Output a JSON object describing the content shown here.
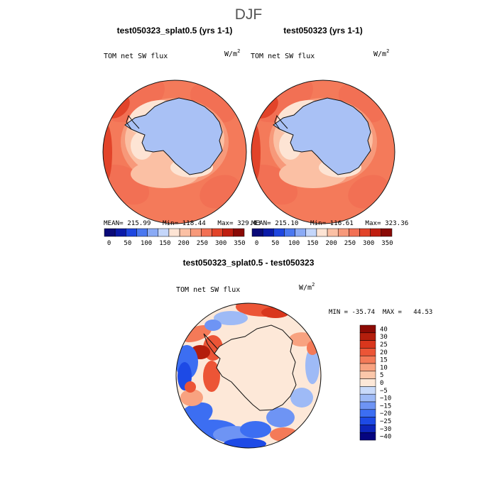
{
  "page": {
    "season": "DJF"
  },
  "colors": {
    "levels_abs": [
      "#0a0a78",
      "#0a1aa8",
      "#1e46e0",
      "#4a78f0",
      "#8aaaf5",
      "#c4d6fa",
      "#fde4d4",
      "#fbc0a4",
      "#f7997a",
      "#f27054",
      "#e2442a",
      "#bf1e10",
      "#8a0a06"
    ],
    "levels_diff": [
      "#050580",
      "#0d25bb",
      "#1d4ae6",
      "#3c6ef2",
      "#6e94f4",
      "#9ebaf6",
      "#c9dafa",
      "#fde8d8",
      "#fbc7aa",
      "#f8a280",
      "#f47a58",
      "#ec5536",
      "#d9361c",
      "#b41e0c",
      "#8c0a04"
    ],
    "coast": "#111111",
    "antarctica_abs": "#a9c1f5",
    "antarctica_diff": "#fde8d8"
  },
  "chart_data": [
    {
      "type": "heatmap",
      "projection": "polar-stereographic-south",
      "title": "test050323_splat0.5 (yrs 1-1)",
      "variable": "TOM net SW flux",
      "units": "W/m",
      "units_exp": "2",
      "stats_text": "MEAN= 215.99   Min= 118.44   Max= 329.43",
      "stats": {
        "mean": 215.99,
        "min": 118.44,
        "max": 329.43
      },
      "colorbar": {
        "tick_labels": [
          "0",
          "50",
          "100",
          "150",
          "200",
          "250",
          "300",
          "350"
        ],
        "levels": [
          0,
          25,
          50,
          75,
          100,
          125,
          150,
          175,
          200,
          225,
          250,
          275,
          300,
          325,
          350
        ]
      }
    },
    {
      "type": "heatmap",
      "projection": "polar-stereographic-south",
      "title": "test050323 (yrs 1-1)",
      "variable": "TOM net SW flux",
      "units": "W/m",
      "units_exp": "2",
      "stats_text": "MEAN= 215.10   Min= 116.61   Max= 323.36",
      "stats": {
        "mean": 215.1,
        "min": 116.61,
        "max": 323.36
      },
      "colorbar": {
        "tick_labels": [
          "0",
          "50",
          "100",
          "150",
          "200",
          "250",
          "300",
          "350"
        ],
        "levels": [
          0,
          25,
          50,
          75,
          100,
          125,
          150,
          175,
          200,
          225,
          250,
          275,
          300,
          325,
          350
        ]
      }
    },
    {
      "type": "heatmap",
      "projection": "polar-stereographic-south",
      "title": "test050323_splat0.5 - test050323",
      "variable": "TOM net SW flux",
      "units": "W/m",
      "units_exp": "2",
      "stats_text": "MIN = -35.74  MAX =   44.53",
      "stats": {
        "min": -35.74,
        "max": 44.53
      },
      "colorbar": {
        "orientation": "vertical",
        "tick_labels": [
          "40",
          "30",
          "25",
          "20",
          "15",
          "10",
          "5",
          "0",
          "−5",
          "−10",
          "−15",
          "−20",
          "−25",
          "−30",
          "−40"
        ],
        "levels": [
          -40,
          -30,
          -25,
          -20,
          -15,
          -10,
          -5,
          0,
          5,
          10,
          15,
          20,
          25,
          30,
          40
        ]
      }
    }
  ]
}
